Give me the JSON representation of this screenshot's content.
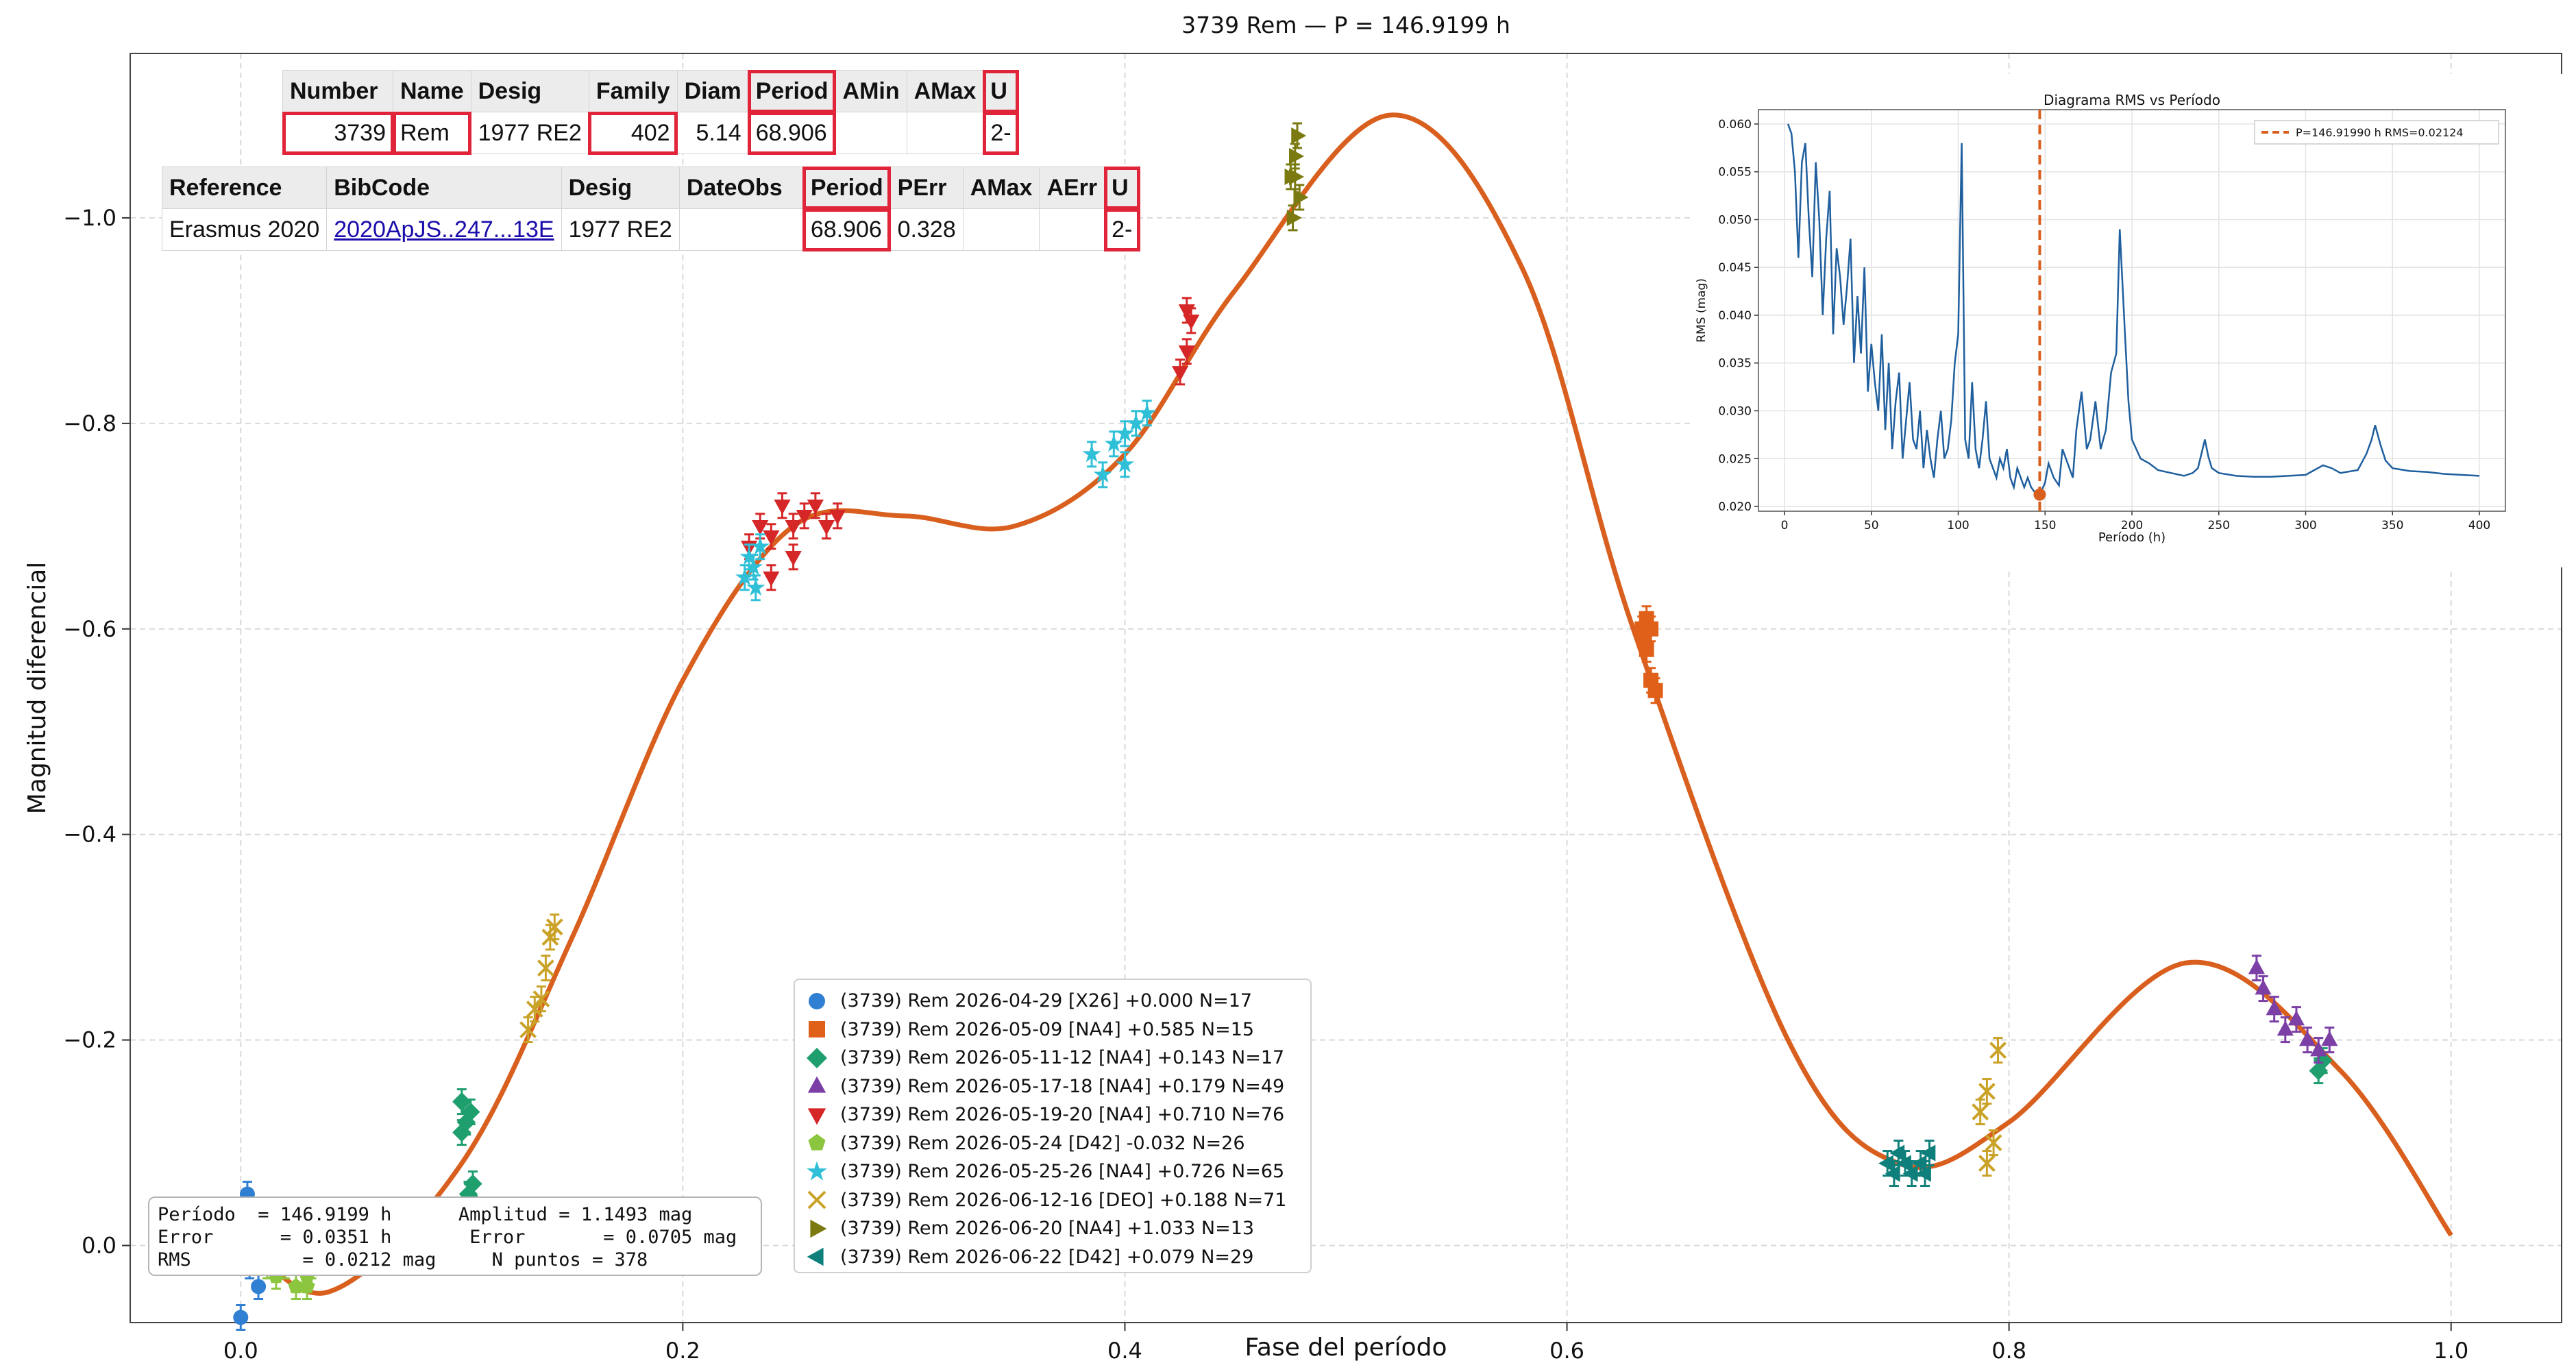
{
  "chart_data": {
    "type": "scatter",
    "title": "3739 Rem — P = 146.9199 h",
    "xlabel": "Fase del período",
    "ylabel": "Magnitud diferencial",
    "xlim": [
      -0.05,
      1.05
    ],
    "ylim": [
      0.075,
      -1.16
    ],
    "y_inverted": true,
    "grid": true,
    "legend_position": "lower-center",
    "x_ticks": [
      "0.0",
      "0.2",
      "0.4",
      "0.6",
      "0.8",
      "1.0"
    ],
    "y_ticks": [
      "0.0",
      "−0.2",
      "−0.4",
      "−0.6",
      "−0.8",
      "−1.0"
    ],
    "fit_curve": {
      "name": "fit",
      "color": "#d95f1e",
      "x": [
        0.0,
        0.04,
        0.1,
        0.15,
        0.2,
        0.25,
        0.3,
        0.35,
        0.4,
        0.45,
        0.52,
        0.58,
        0.63,
        0.7,
        0.75,
        0.8,
        0.88,
        0.95,
        1.0
      ],
      "y": [
        -0.01,
        0.045,
        -0.08,
        -0.3,
        -0.55,
        -0.7,
        -0.71,
        -0.7,
        -0.77,
        -0.93,
        -1.1,
        -0.95,
        -0.6,
        -0.2,
        -0.08,
        -0.12,
        -0.275,
        -0.17,
        -0.01
      ]
    },
    "series": [
      {
        "name": "(3739) Rem 2026-04-29 [X26] +0.000 N=17",
        "marker": "circle",
        "color": "#2f7fd3",
        "points": [
          [
            0.0,
            -0.01
          ],
          [
            0.002,
            -0.04
          ],
          [
            0.004,
            0.02
          ],
          [
            0.006,
            -0.03
          ],
          [
            0.008,
            0.04
          ],
          [
            0.0,
            0.07
          ],
          [
            0.003,
            -0.05
          ],
          [
            0.005,
            0.0
          ]
        ]
      },
      {
        "name": "(3739) Rem 2026-05-09 [NA4] +0.585 N=15",
        "marker": "square",
        "color": "#e0601a",
        "points": [
          [
            0.634,
            -0.6
          ],
          [
            0.636,
            -0.61
          ],
          [
            0.638,
            -0.6
          ],
          [
            0.636,
            -0.58
          ],
          [
            0.638,
            -0.55
          ],
          [
            0.64,
            -0.54
          ],
          [
            0.635,
            -0.59
          ]
        ]
      },
      {
        "name": "(3739) Rem 2026-05-11-12 [NA4] +0.143 N=17",
        "marker": "diamond",
        "color": "#1f9e6e",
        "points": [
          [
            0.1,
            -0.14
          ],
          [
            0.102,
            -0.12
          ],
          [
            0.104,
            -0.13
          ],
          [
            0.1,
            -0.11
          ],
          [
            0.103,
            -0.05
          ],
          [
            0.105,
            -0.06
          ],
          [
            0.94,
            -0.17
          ],
          [
            0.942,
            -0.18
          ]
        ]
      },
      {
        "name": "(3739) Rem 2026-05-17-18 [NA4] +0.179 N=49",
        "marker": "triangle-up",
        "color": "#7b3fa6",
        "points": [
          [
            0.08,
            -0.02
          ],
          [
            0.082,
            0.0
          ],
          [
            0.912,
            -0.27
          ],
          [
            0.915,
            -0.25
          ],
          [
            0.92,
            -0.23
          ],
          [
            0.925,
            -0.21
          ],
          [
            0.93,
            -0.22
          ],
          [
            0.935,
            -0.2
          ],
          [
            0.94,
            -0.19
          ],
          [
            0.945,
            -0.2
          ]
        ]
      },
      {
        "name": "(3739) Rem 2026-05-19-20 [NA4] +0.710 N=76",
        "marker": "triangle-down",
        "color": "#d62728",
        "points": [
          [
            0.23,
            -0.68
          ],
          [
            0.235,
            -0.7
          ],
          [
            0.24,
            -0.69
          ],
          [
            0.245,
            -0.72
          ],
          [
            0.25,
            -0.7
          ],
          [
            0.255,
            -0.71
          ],
          [
            0.26,
            -0.72
          ],
          [
            0.265,
            -0.7
          ],
          [
            0.27,
            -0.71
          ],
          [
            0.24,
            -0.65
          ],
          [
            0.25,
            -0.67
          ],
          [
            0.425,
            -0.85
          ],
          [
            0.428,
            -0.87
          ],
          [
            0.43,
            -0.9
          ],
          [
            0.428,
            -0.91
          ]
        ]
      },
      {
        "name": "(3739) Rem 2026-05-24 [D42] -0.032 N=26",
        "marker": "pentagon",
        "color": "#8cc63f",
        "points": [
          [
            0.012,
            0.02
          ],
          [
            0.016,
            0.03
          ],
          [
            0.02,
            0.02
          ],
          [
            0.025,
            0.04
          ],
          [
            0.03,
            0.03
          ],
          [
            0.032,
            0.02
          ],
          [
            0.03,
            0.04
          ]
        ]
      },
      {
        "name": "(3739) Rem 2026-05-25-26 [NA4] +0.726 N=65",
        "marker": "star",
        "color": "#2fc0d8",
        "points": [
          [
            0.228,
            -0.65
          ],
          [
            0.23,
            -0.67
          ],
          [
            0.232,
            -0.66
          ],
          [
            0.235,
            -0.68
          ],
          [
            0.233,
            -0.64
          ],
          [
            0.385,
            -0.77
          ],
          [
            0.39,
            -0.75
          ],
          [
            0.395,
            -0.78
          ],
          [
            0.4,
            -0.79
          ],
          [
            0.405,
            -0.8
          ],
          [
            0.41,
            -0.81
          ],
          [
            0.4,
            -0.76
          ]
        ]
      },
      {
        "name": "(3739) Rem 2026-06-12-16 [DEO] +0.188 N=71",
        "marker": "x",
        "color": "#c9a227",
        "points": [
          [
            0.13,
            -0.21
          ],
          [
            0.133,
            -0.23
          ],
          [
            0.136,
            -0.24
          ],
          [
            0.14,
            -0.3
          ],
          [
            0.142,
            -0.31
          ],
          [
            0.138,
            -0.27
          ],
          [
            0.787,
            -0.13
          ],
          [
            0.79,
            -0.15
          ],
          [
            0.793,
            -0.1
          ],
          [
            0.79,
            -0.08
          ],
          [
            0.795,
            -0.19
          ]
        ]
      },
      {
        "name": "(3739) Rem 2026-06-20 [NA4] +1.033 N=13",
        "marker": "triangle-right",
        "color": "#7a7a10",
        "points": [
          [
            0.475,
            -1.04
          ],
          [
            0.477,
            -1.06
          ],
          [
            0.478,
            -1.08
          ],
          [
            0.476,
            -1.0
          ],
          [
            0.479,
            -1.02
          ],
          [
            0.477,
            -1.04
          ]
        ]
      },
      {
        "name": "(3739) Rem 2026-06-22 [D42] +0.079 N=29",
        "marker": "triangle-left",
        "color": "#0e7f7a",
        "points": [
          [
            0.745,
            -0.08
          ],
          [
            0.748,
            -0.07
          ],
          [
            0.75,
            -0.09
          ],
          [
            0.753,
            -0.08
          ],
          [
            0.756,
            -0.07
          ],
          [
            0.76,
            -0.08
          ],
          [
            0.764,
            -0.09
          ],
          [
            0.762,
            -0.07
          ]
        ]
      }
    ],
    "inset": {
      "title": "Diagrama RMS vs Período",
      "xlabel": "Período (h)",
      "ylabel": "RMS (mag)",
      "xlim": [
        -15,
        415
      ],
      "ylim": [
        0.0195,
        0.0615
      ],
      "x_ticks": [
        "0",
        "50",
        "100",
        "150",
        "200",
        "250",
        "300",
        "350",
        "400"
      ],
      "y_ticks": [
        "0.020",
        "0.025",
        "0.030",
        "0.035",
        "0.040",
        "0.045",
        "0.050",
        "0.055",
        "0.060"
      ],
      "legend": "P=146.91990 h   RMS=0.02124",
      "marker_period": 146.9199,
      "marker_rms": 0.02124,
      "line_color": "#1f5f9e",
      "marker_color": "#d95f1e",
      "x": [
        2,
        4,
        6,
        8,
        10,
        12,
        14,
        16,
        18,
        20,
        22,
        24,
        26,
        28,
        30,
        32,
        34,
        36,
        38,
        40,
        42,
        44,
        46,
        48,
        50,
        52,
        54,
        56,
        58,
        60,
        62,
        64,
        66,
        68,
        70,
        72,
        74,
        76,
        78,
        80,
        82,
        84,
        86,
        88,
        90,
        92,
        94,
        96,
        98,
        100,
        102,
        104,
        106,
        108,
        110,
        112,
        114,
        116,
        118,
        120,
        122,
        124,
        126,
        128,
        130,
        132,
        134,
        136,
        138,
        140,
        142,
        144,
        147,
        150,
        152,
        155,
        158,
        160,
        163,
        166,
        168,
        171,
        174,
        176,
        179,
        182,
        185,
        188,
        191,
        193,
        196,
        198,
        200,
        205,
        210,
        215,
        220,
        225,
        230,
        235,
        238,
        240,
        242,
        244,
        246,
        250,
        260,
        270,
        280,
        290,
        300,
        305,
        310,
        315,
        320,
        330,
        335,
        338,
        340,
        343,
        346,
        350,
        360,
        370,
        380,
        390,
        400
      ],
      "y": [
        0.06,
        0.059,
        0.055,
        0.046,
        0.056,
        0.058,
        0.05,
        0.044,
        0.056,
        0.05,
        0.04,
        0.048,
        0.053,
        0.038,
        0.047,
        0.044,
        0.039,
        0.043,
        0.048,
        0.035,
        0.042,
        0.036,
        0.045,
        0.032,
        0.037,
        0.033,
        0.03,
        0.038,
        0.028,
        0.035,
        0.026,
        0.031,
        0.034,
        0.025,
        0.029,
        0.033,
        0.027,
        0.026,
        0.03,
        0.024,
        0.028,
        0.025,
        0.023,
        0.027,
        0.03,
        0.025,
        0.026,
        0.029,
        0.035,
        0.038,
        0.058,
        0.027,
        0.025,
        0.033,
        0.026,
        0.024,
        0.027,
        0.031,
        0.025,
        0.024,
        0.023,
        0.025,
        0.024,
        0.026,
        0.023,
        0.022,
        0.024,
        0.023,
        0.022,
        0.023,
        0.022,
        0.0215,
        0.0212,
        0.0225,
        0.0245,
        0.023,
        0.0222,
        0.026,
        0.0245,
        0.023,
        0.028,
        0.032,
        0.026,
        0.027,
        0.031,
        0.026,
        0.028,
        0.034,
        0.036,
        0.049,
        0.038,
        0.031,
        0.027,
        0.025,
        0.0245,
        0.0238,
        0.0236,
        0.0234,
        0.0232,
        0.0235,
        0.024,
        0.0255,
        0.027,
        0.0252,
        0.024,
        0.0235,
        0.0232,
        0.0231,
        0.0231,
        0.0232,
        0.0233,
        0.0238,
        0.0243,
        0.024,
        0.0235,
        0.0238,
        0.0255,
        0.027,
        0.0285,
        0.0265,
        0.0248,
        0.024,
        0.0237,
        0.0236,
        0.0234,
        0.0233,
        0.0232
      ]
    }
  },
  "table1": {
    "headers": [
      "Number",
      "Name",
      "Desig",
      "Family",
      "Diam",
      "Period",
      "AMin",
      "AMax",
      "U"
    ],
    "row": [
      "3739",
      "Rem",
      "1977 RE2",
      "402",
      "5.14",
      "68.906",
      "",
      "",
      "2-"
    ]
  },
  "table2": {
    "headers": [
      "Reference",
      "BibCode",
      "Desig",
      "DateObs",
      "Period",
      "PErr",
      "AMax",
      "AErr",
      "U"
    ],
    "row": [
      "Erasmus 2020",
      "2020ApJS..247...13E",
      "1977 RE2",
      "",
      "68.906",
      "0.328",
      "",
      "",
      "2-"
    ]
  },
  "highlight_color": "#e0243a",
  "stats": {
    "line1": "Período  = 146.9199 h      Amplitud = 1.1493 mag",
    "line2": "Error      = 0.0351 h       Error       = 0.0705 mag",
    "line3": "RMS          = 0.0212 mag     N puntos = 378"
  }
}
